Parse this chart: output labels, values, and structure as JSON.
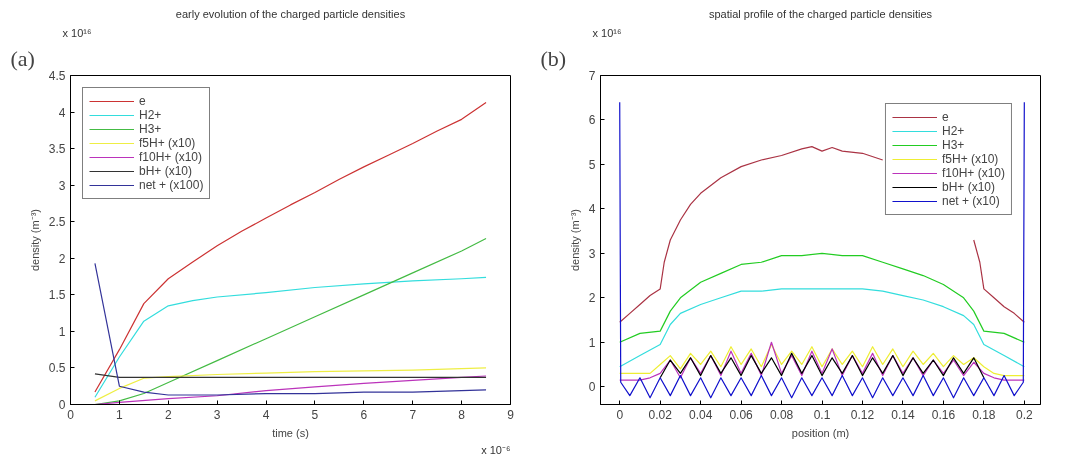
{
  "chart_data": [
    {
      "type": "line",
      "title": "early evolution of the charged particle densities",
      "xlabel": "time (s)",
      "ylabel": "density (m⁻³)",
      "annotations": [
        "(a)",
        "x 10¹⁶",
        "x 10⁻⁶"
      ],
      "xlim": [
        0,
        9
      ],
      "xticks": [
        0,
        1,
        2,
        3,
        4,
        5,
        6,
        7,
        8,
        9
      ],
      "ylim": [
        0,
        4.5
      ],
      "yticks": [
        0,
        0.5,
        1,
        1.5,
        2,
        2.5,
        3,
        3.5,
        4,
        4.5
      ],
      "grid": false,
      "legend": "top left",
      "marker": "none",
      "line_style": "solid",
      "series": [
        {
          "name": "e",
          "color": "#cc3333",
          "x": [
            0.5,
            1,
            1.5,
            2,
            2.5,
            3,
            3.5,
            4,
            4.5,
            5,
            5.5,
            6,
            6.5,
            7,
            7.5,
            8,
            8.5
          ],
          "values": [
            0.17,
            0.75,
            1.38,
            1.72,
            1.95,
            2.17,
            2.37,
            2.55,
            2.73,
            2.9,
            3.08,
            3.25,
            3.41,
            3.57,
            3.74,
            3.9,
            4.13
          ]
        },
        {
          "name": "H2+",
          "color": "#33dddd",
          "x": [
            0.5,
            1,
            1.5,
            2,
            2.5,
            3,
            4,
            5,
            6,
            7,
            8,
            8.5
          ],
          "values": [
            0.1,
            0.65,
            1.14,
            1.35,
            1.42,
            1.47,
            1.53,
            1.6,
            1.65,
            1.69,
            1.72,
            1.74
          ]
        },
        {
          "name": "H3+",
          "color": "#44bb44",
          "x": [
            0.5,
            1,
            1.5,
            2,
            3,
            4,
            5,
            6,
            7,
            8,
            8.5
          ],
          "values": [
            0.0,
            0.05,
            0.15,
            0.3,
            0.6,
            0.9,
            1.2,
            1.5,
            1.8,
            2.1,
            2.27
          ]
        },
        {
          "name": "f5H+ (x10)",
          "color": "#eeee44",
          "x": [
            0.5,
            1,
            1.5,
            2,
            3,
            4,
            5,
            6,
            7,
            8,
            8.5
          ],
          "values": [
            0.05,
            0.22,
            0.36,
            0.38,
            0.41,
            0.43,
            0.45,
            0.46,
            0.47,
            0.49,
            0.5
          ]
        },
        {
          "name": "f10H+ (x10)",
          "color": "#bb33bb",
          "x": [
            0.5,
            1,
            2,
            3,
            4,
            5,
            6,
            7,
            8,
            8.5
          ],
          "values": [
            0.0,
            0.03,
            0.08,
            0.12,
            0.19,
            0.24,
            0.29,
            0.33,
            0.37,
            0.39
          ]
        },
        {
          "name": "bH+ (x10)",
          "color": "#333333",
          "x": [
            0.5,
            1,
            2,
            4,
            6,
            8.5
          ],
          "values": [
            0.42,
            0.37,
            0.37,
            0.37,
            0.37,
            0.37
          ]
        },
        {
          "name": "net + (x100)",
          "color": "#333399",
          "x": [
            0.5,
            1,
            1.5,
            2,
            3,
            4,
            5,
            6,
            7,
            8.5
          ],
          "values": [
            1.93,
            0.25,
            0.17,
            0.13,
            0.13,
            0.15,
            0.15,
            0.17,
            0.17,
            0.2
          ]
        }
      ]
    },
    {
      "type": "line",
      "title": "spatial profile of the charged particle densities",
      "xlabel": "position (m)",
      "ylabel": "density (m⁻³)",
      "annotations": [
        "(b)",
        "x 10¹⁶"
      ],
      "xlim": [
        -0.0095,
        0.208
      ],
      "xticks": [
        0,
        0.02,
        0.04,
        0.06,
        0.08,
        0.1,
        0.12,
        0.14,
        0.16,
        0.18,
        0.2
      ],
      "ylim": [
        -0.4,
        7
      ],
      "yticks": [
        0,
        1,
        2,
        3,
        4,
        5,
        6,
        7
      ],
      "grid": false,
      "legend": "top right",
      "marker": "none",
      "line_style": "solid",
      "series": [
        {
          "name": "e",
          "color": "#aa3344",
          "x": [
            0,
            0.005,
            0.01,
            0.015,
            0.02,
            0.022,
            0.025,
            0.03,
            0.035,
            0.04,
            0.05,
            0.06,
            0.07,
            0.08,
            0.09,
            0.095,
            0.1,
            0.105,
            0.11,
            0.12,
            0.13,
            0.14,
            0.15,
            0.16,
            0.17,
            0.175,
            0.178,
            0.18,
            0.185,
            0.19,
            0.195,
            0.2
          ],
          "values": [
            1.45,
            1.65,
            1.85,
            2.05,
            2.2,
            2.8,
            3.3,
            3.75,
            4.1,
            4.35,
            4.7,
            4.95,
            5.1,
            5.2,
            5.35,
            5.4,
            5.3,
            5.38,
            5.3,
            5.25,
            5.1,
            null,
            null,
            null,
            null,
            3.3,
            2.8,
            2.2,
            2.0,
            1.8,
            1.65,
            1.45
          ]
        },
        {
          "name": "H2+",
          "color": "#33dddd",
          "x": [
            0,
            0.01,
            0.02,
            0.025,
            0.03,
            0.04,
            0.05,
            0.06,
            0.07,
            0.08,
            0.09,
            0.1,
            0.11,
            0.12,
            0.13,
            0.14,
            0.15,
            0.16,
            0.17,
            0.175,
            0.18,
            0.19,
            0.2
          ],
          "values": [
            0.45,
            0.7,
            0.95,
            1.4,
            1.65,
            1.85,
            2.0,
            2.15,
            2.15,
            2.2,
            2.2,
            2.2,
            2.2,
            2.2,
            2.15,
            2.05,
            1.95,
            1.8,
            1.6,
            1.4,
            0.95,
            0.7,
            0.45
          ]
        },
        {
          "name": "H3+",
          "color": "#22cc22",
          "x": [
            0,
            0.01,
            0.02,
            0.025,
            0.03,
            0.04,
            0.05,
            0.06,
            0.07,
            0.08,
            0.09,
            0.1,
            0.11,
            0.12,
            0.13,
            0.14,
            0.15,
            0.16,
            0.17,
            0.175,
            0.18,
            0.19,
            0.2
          ],
          "values": [
            1.0,
            1.2,
            1.25,
            1.7,
            2.0,
            2.35,
            2.55,
            2.75,
            2.8,
            2.95,
            2.95,
            3.0,
            2.95,
            2.95,
            2.8,
            2.65,
            2.5,
            2.3,
            2.0,
            1.7,
            1.25,
            1.2,
            1.0
          ]
        },
        {
          "name": "f5H+ (x10)",
          "color": "#eeee33",
          "x": [
            0,
            0.005,
            0.01,
            0.015,
            0.02,
            0.025,
            0.03,
            0.035,
            0.04,
            0.045,
            0.05,
            0.055,
            0.06,
            0.065,
            0.07,
            0.075,
            0.08,
            0.085,
            0.09,
            0.095,
            0.1,
            0.105,
            0.11,
            0.115,
            0.12,
            0.125,
            0.13,
            0.135,
            0.14,
            0.145,
            0.15,
            0.155,
            0.16,
            0.165,
            0.17,
            0.175,
            0.18,
            0.185,
            0.19,
            0.195,
            0.2
          ],
          "values": [
            0.3,
            0.3,
            0.3,
            0.3,
            0.5,
            0.7,
            0.4,
            0.75,
            0.5,
            0.8,
            0.45,
            0.9,
            0.5,
            0.85,
            0.45,
            0.95,
            0.5,
            0.8,
            0.5,
            0.9,
            0.45,
            0.85,
            0.5,
            0.8,
            0.45,
            0.9,
            0.5,
            0.85,
            0.45,
            0.8,
            0.5,
            0.75,
            0.45,
            0.7,
            0.5,
            0.65,
            0.45,
            0.3,
            0.25,
            0.25,
            0.25
          ]
        },
        {
          "name": "f10H+ (x10)",
          "color": "#bb33bb",
          "x": [
            0,
            0.005,
            0.01,
            0.015,
            0.02,
            0.025,
            0.03,
            0.035,
            0.04,
            0.045,
            0.05,
            0.055,
            0.06,
            0.065,
            0.07,
            0.075,
            0.08,
            0.085,
            0.09,
            0.095,
            0.1,
            0.105,
            0.11,
            0.115,
            0.12,
            0.125,
            0.13,
            0.135,
            0.14,
            0.145,
            0.15,
            0.155,
            0.16,
            0.165,
            0.17,
            0.175,
            0.18,
            0.185,
            0.19,
            0.195,
            0.2
          ],
          "values": [
            0.15,
            0.15,
            0.15,
            0.2,
            0.3,
            0.6,
            0.2,
            0.65,
            0.3,
            0.7,
            0.25,
            0.8,
            0.3,
            0.75,
            0.25,
            1.0,
            0.3,
            0.7,
            0.25,
            0.8,
            0.3,
            0.85,
            0.25,
            0.7,
            0.3,
            0.75,
            0.25,
            0.7,
            0.3,
            0.65,
            0.25,
            0.6,
            0.3,
            0.6,
            0.25,
            0.55,
            0.3,
            0.2,
            0.15,
            0.15,
            0.15
          ]
        },
        {
          "name": "bH+ (x10)",
          "color": "#000000",
          "x": [
            0.02,
            0.025,
            0.03,
            0.035,
            0.04,
            0.045,
            0.05,
            0.055,
            0.06,
            0.065,
            0.07,
            0.075,
            0.08,
            0.085,
            0.09,
            0.095,
            0.1,
            0.105,
            0.11,
            0.115,
            0.12,
            0.125,
            0.13,
            0.135,
            0.14,
            0.145,
            0.15,
            0.155,
            0.16,
            0.165,
            0.17,
            0.175,
            0.18
          ],
          "values": [
            0.2,
            0.6,
            0.3,
            0.65,
            0.25,
            0.7,
            0.3,
            0.65,
            0.25,
            0.7,
            0.3,
            0.65,
            0.25,
            0.75,
            0.3,
            0.7,
            0.25,
            0.65,
            0.3,
            0.7,
            0.25,
            0.65,
            0.3,
            0.7,
            0.25,
            0.65,
            0.3,
            0.6,
            0.25,
            0.65,
            0.3,
            0.65,
            0.2
          ]
        },
        {
          "name": "net + (x10)",
          "color": "#1111cc",
          "x": [
            0,
            0.0005,
            0.005,
            0.01,
            0.015,
            0.02,
            0.025,
            0.03,
            0.035,
            0.04,
            0.045,
            0.05,
            0.055,
            0.06,
            0.065,
            0.07,
            0.075,
            0.08,
            0.085,
            0.09,
            0.095,
            0.1,
            0.105,
            0.11,
            0.115,
            0.12,
            0.125,
            0.13,
            0.135,
            0.14,
            0.145,
            0.15,
            0.155,
            0.16,
            0.165,
            0.17,
            0.175,
            0.18,
            0.185,
            0.19,
            0.195,
            0.1995,
            0.2
          ],
          "values": [
            6.4,
            0.1,
            -0.2,
            0.2,
            -0.25,
            0.2,
            -0.2,
            0.25,
            -0.2,
            0.2,
            -0.25,
            0.2,
            -0.2,
            0.2,
            -0.2,
            0.25,
            -0.2,
            0.2,
            -0.25,
            0.2,
            -0.2,
            0.2,
            -0.2,
            0.25,
            -0.2,
            0.2,
            -0.25,
            0.2,
            -0.2,
            0.2,
            -0.2,
            0.25,
            -0.2,
            0.2,
            -0.25,
            0.2,
            -0.2,
            0.2,
            -0.2,
            0.25,
            -0.2,
            0.1,
            6.4
          ]
        }
      ]
    }
  ]
}
